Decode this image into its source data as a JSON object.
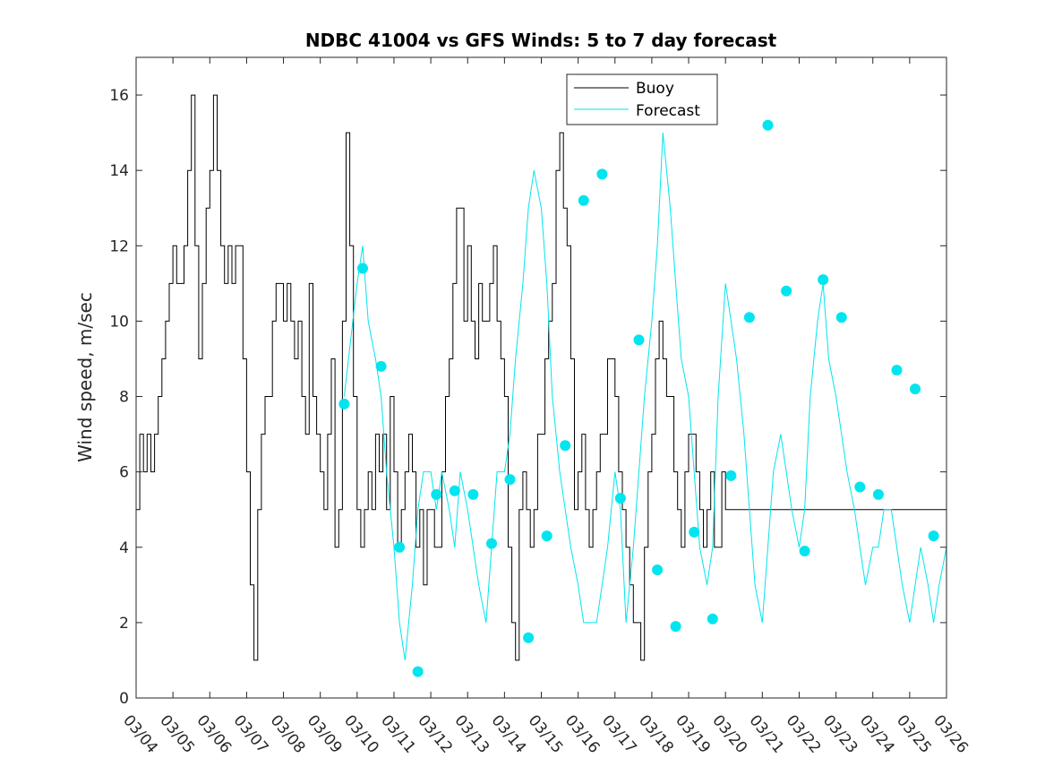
{
  "chart_data": {
    "type": "line",
    "title": "NDBC 41004 vs GFS Winds: 5 to 7 day forecast",
    "xlabel": "",
    "ylabel": "Wind speed, m/sec",
    "xlim": [
      0,
      22
    ],
    "ylim": [
      0,
      17
    ],
    "y_ticks": [
      0,
      2,
      4,
      6,
      8,
      10,
      12,
      14,
      16
    ],
    "x_tick_labels": [
      "03/04",
      "03/05",
      "03/06",
      "03/07",
      "03/08",
      "03/09",
      "03/10",
      "03/11",
      "03/12",
      "03/13",
      "03/14",
      "03/15",
      "03/16",
      "03/17",
      "03/18",
      "03/19",
      "03/20",
      "03/21",
      "03/22",
      "03/23",
      "03/24",
      "03/25",
      "03/26"
    ],
    "legend": {
      "placement": "top-right",
      "entries": [
        "Buoy",
        "Forecast"
      ]
    },
    "colors": {
      "buoy": "#000000",
      "forecast": "#00e5ee",
      "axis": "#262626"
    },
    "series": [
      {
        "name": "Buoy",
        "x": [
          0,
          0.1,
          0.2,
          0.3,
          0.4,
          0.5,
          0.6,
          0.7,
          0.8,
          0.9,
          1.0,
          1.1,
          1.2,
          1.3,
          1.4,
          1.5,
          1.6,
          1.7,
          1.8,
          1.9,
          2.0,
          2.1,
          2.2,
          2.3,
          2.4,
          2.5,
          2.6,
          2.7,
          2.8,
          2.9,
          3.0,
          3.1,
          3.2,
          3.3,
          3.4,
          3.5,
          3.6,
          3.7,
          3.8,
          3.9,
          4.0,
          4.1,
          4.2,
          4.3,
          4.4,
          4.5,
          4.6,
          4.7,
          4.8,
          4.9,
          5.0,
          5.1,
          5.2,
          5.3,
          5.4,
          5.5,
          5.6,
          5.7,
          5.8,
          5.9,
          6.0,
          6.1,
          6.2,
          6.3,
          6.4,
          6.5,
          6.6,
          6.7,
          6.8,
          6.9,
          7.0,
          7.1,
          7.2,
          7.3,
          7.4,
          7.5,
          7.6,
          7.7,
          7.8,
          7.9,
          8.0,
          8.1,
          8.2,
          8.3,
          8.4,
          8.5,
          8.6,
          8.7,
          8.8,
          8.9,
          9.0,
          9.1,
          9.2,
          9.3,
          9.4,
          9.5,
          9.6,
          9.7,
          9.8,
          9.9,
          10.0,
          10.1,
          10.2,
          10.3,
          10.4,
          10.5,
          10.6,
          10.7,
          10.8,
          10.9,
          11.0,
          11.1,
          11.2,
          11.3,
          11.4,
          11.5,
          11.6,
          11.7,
          11.8,
          11.9,
          12.0,
          12.1,
          12.2,
          12.3,
          12.4,
          12.5,
          12.6,
          12.7,
          12.8,
          12.9,
          13.0,
          13.1,
          13.2,
          13.3,
          13.4,
          13.5,
          13.6,
          13.7,
          13.8,
          13.9,
          14.0,
          14.1,
          14.2,
          14.3,
          14.4,
          14.5,
          14.6,
          14.7,
          14.8,
          14.9,
          15.0,
          15.1,
          15.2,
          15.3,
          15.4,
          15.5,
          15.6,
          15.7,
          15.8,
          15.9,
          16.0,
          16.1,
          16.2,
          16.3,
          16.4,
          16.5,
          16.6,
          16.7,
          16.8,
          16.9,
          17.0,
          17.1,
          17.2,
          17.3,
          17.4,
          17.5,
          17.6,
          17.7,
          17.8,
          17.9,
          18.0,
          18.1,
          18.2,
          18.3,
          18.4,
          18.5,
          18.6,
          18.7,
          18.8,
          18.9,
          19.0,
          19.1,
          19.2,
          19.3,
          19.4,
          19.5,
          19.6,
          19.7,
          19.8,
          19.9,
          20.0,
          20.1,
          20.2,
          20.3,
          20.4,
          20.5,
          20.6,
          20.7,
          20.8,
          20.9,
          21.0,
          21.1,
          21.2,
          21.3,
          21.4,
          21.5,
          21.6,
          21.7,
          21.8,
          21.9,
          22.0
        ],
        "values": [
          5,
          7,
          6,
          7,
          6,
          7,
          8,
          9,
          10,
          11,
          12,
          11,
          11,
          12,
          14,
          16,
          12,
          9,
          11,
          13,
          14,
          16,
          14,
          12,
          11,
          12,
          11,
          12,
          12,
          9,
          6,
          3,
          1,
          5,
          7,
          8,
          8,
          10,
          11,
          11,
          10,
          11,
          10,
          9,
          10,
          8,
          7,
          11,
          8,
          7,
          6,
          5,
          7,
          9,
          4,
          5,
          10,
          15,
          12,
          8,
          5,
          4,
          5,
          6,
          5,
          7,
          6,
          7,
          5,
          8,
          6,
          4,
          5,
          6,
          7,
          6,
          4,
          5,
          3,
          5,
          5,
          4,
          4,
          6,
          8,
          9,
          11,
          13,
          13,
          10,
          12,
          10,
          9,
          11,
          10,
          10,
          11,
          12,
          10,
          9,
          8,
          4,
          2,
          1,
          5,
          6,
          5,
          4,
          5,
          7,
          7,
          9,
          10,
          11,
          14,
          15,
          13,
          12,
          9,
          5,
          6,
          7,
          5,
          4,
          5,
          6,
          7,
          7,
          9,
          9,
          8,
          6,
          5,
          4,
          3,
          2,
          2,
          1,
          4,
          6,
          7,
          9,
          10,
          9,
          8,
          8,
          6,
          5,
          4,
          6,
          7,
          7,
          6,
          5,
          4,
          5,
          6,
          4,
          4,
          6,
          5,
          5,
          5,
          5,
          5,
          5,
          5,
          5,
          5,
          5,
          5,
          5,
          5,
          5,
          5,
          5,
          5,
          5,
          5,
          5,
          5,
          5,
          5,
          5,
          5,
          5,
          5,
          5,
          5,
          5,
          5,
          5,
          5,
          5,
          5,
          5,
          5,
          5,
          5,
          5,
          5,
          5,
          5,
          5,
          5,
          5,
          5,
          5,
          5,
          5,
          5,
          5,
          5,
          5,
          5,
          5,
          5,
          5,
          5,
          5,
          5
        ]
      },
      {
        "name": "Forecast",
        "x": [
          5.65,
          6.0,
          6.15,
          6.3,
          6.5,
          6.65,
          6.8,
          7.0,
          7.15,
          7.3,
          7.5,
          7.65,
          7.8,
          8.0,
          8.15,
          8.3,
          8.5,
          8.65,
          8.8,
          9.0,
          9.15,
          9.3,
          9.5,
          9.65,
          9.8,
          10.0,
          10.15,
          10.3,
          10.5,
          10.65,
          10.8,
          11.0,
          11.15,
          11.3,
          11.5,
          11.65,
          11.8,
          12.0,
          12.15,
          12.3,
          12.5,
          12.65,
          12.8,
          13.0,
          13.15,
          13.3,
          13.5,
          13.65,
          13.8,
          14.0,
          14.15,
          14.3,
          14.5,
          14.65,
          14.8,
          15.0,
          15.15,
          15.3,
          15.5,
          15.65,
          15.8,
          16.0,
          16.15,
          16.3,
          16.5,
          16.65,
          16.8,
          17.0,
          17.15,
          17.3,
          17.5,
          17.65,
          17.8,
          18.0,
          18.15,
          18.3,
          18.5,
          18.65,
          18.8,
          19.0,
          19.15,
          19.3,
          19.5,
          19.65,
          19.8,
          20.0,
          20.15,
          20.3,
          20.5,
          20.65,
          20.8,
          21.0,
          21.15,
          21.3,
          21.5,
          21.65,
          21.8,
          22.0
        ],
        "values": [
          8,
          11,
          12,
          10,
          9,
          8,
          6,
          4,
          2,
          1,
          3,
          5,
          6,
          6,
          5,
          6,
          5,
          4,
          6,
          5,
          4,
          3,
          2,
          4,
          6,
          6,
          7,
          9,
          11,
          13,
          14,
          13,
          11,
          8,
          6,
          5,
          4,
          3,
          2,
          2,
          2,
          3,
          4,
          6,
          5,
          2,
          4,
          6,
          8,
          10,
          12,
          15,
          13,
          11,
          9,
          8,
          6,
          4,
          3,
          4,
          8,
          11,
          10,
          9,
          7,
          5,
          3,
          2,
          4,
          6,
          7,
          6,
          5,
          4,
          5,
          8,
          10,
          11,
          9,
          8,
          7,
          6,
          5,
          4,
          3,
          4,
          4,
          5,
          5,
          4,
          3,
          2,
          3,
          4,
          3,
          2,
          3,
          4
        ]
      }
    ],
    "forecast_markers": {
      "x": [
        5.65,
        6.15,
        6.65,
        7.15,
        7.65,
        8.15,
        8.65,
        9.15,
        9.65,
        10.15,
        10.65,
        11.15,
        11.65,
        12.15,
        12.65,
        13.15,
        13.65,
        14.15,
        14.65,
        15.15,
        15.65,
        16.15,
        16.65,
        17.15,
        17.65,
        18.15,
        18.65,
        19.15,
        19.65,
        20.15,
        20.65,
        21.15,
        21.65
      ],
      "values": [
        7.8,
        11.4,
        8.8,
        4.0,
        0.7,
        5.4,
        5.5,
        5.4,
        4.1,
        5.8,
        1.6,
        4.3,
        6.7,
        13.2,
        13.9,
        5.3,
        9.5,
        3.4,
        1.9,
        4.4,
        2.1,
        5.9,
        10.1,
        15.2,
        10.8,
        3.9,
        11.1,
        10.1,
        5.6,
        5.4,
        8.7,
        8.2,
        4.3
      ]
    }
  }
}
